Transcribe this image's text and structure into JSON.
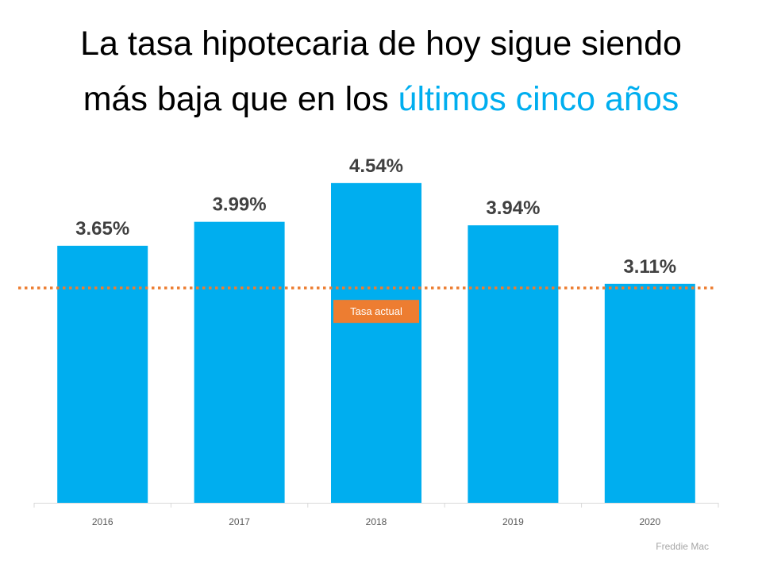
{
  "title": {
    "line1": "La tasa hipotecaria de hoy sigue siendo",
    "line2_prefix": "más baja que en los ",
    "line2_highlight": "últimos cinco años"
  },
  "source": "Freddie Mac",
  "colors": {
    "bar": "#00AEEF",
    "reference_line": "#ED7D31",
    "highlight_text": "#00AEEF",
    "label_text": "#404040"
  },
  "chart_data": {
    "type": "bar",
    "categories": [
      "2016",
      "2017",
      "2018",
      "2019",
      "2020"
    ],
    "values": [
      3.65,
      3.99,
      4.54,
      3.94,
      3.11
    ],
    "data_labels": [
      "3.65%",
      "3.99%",
      "4.54%",
      "3.94%",
      "3.11%"
    ],
    "ylim": [
      0,
      5
    ],
    "grid": false,
    "reference_line": {
      "label": "Tasa actual",
      "value": 3.05,
      "style": "dotted"
    }
  }
}
